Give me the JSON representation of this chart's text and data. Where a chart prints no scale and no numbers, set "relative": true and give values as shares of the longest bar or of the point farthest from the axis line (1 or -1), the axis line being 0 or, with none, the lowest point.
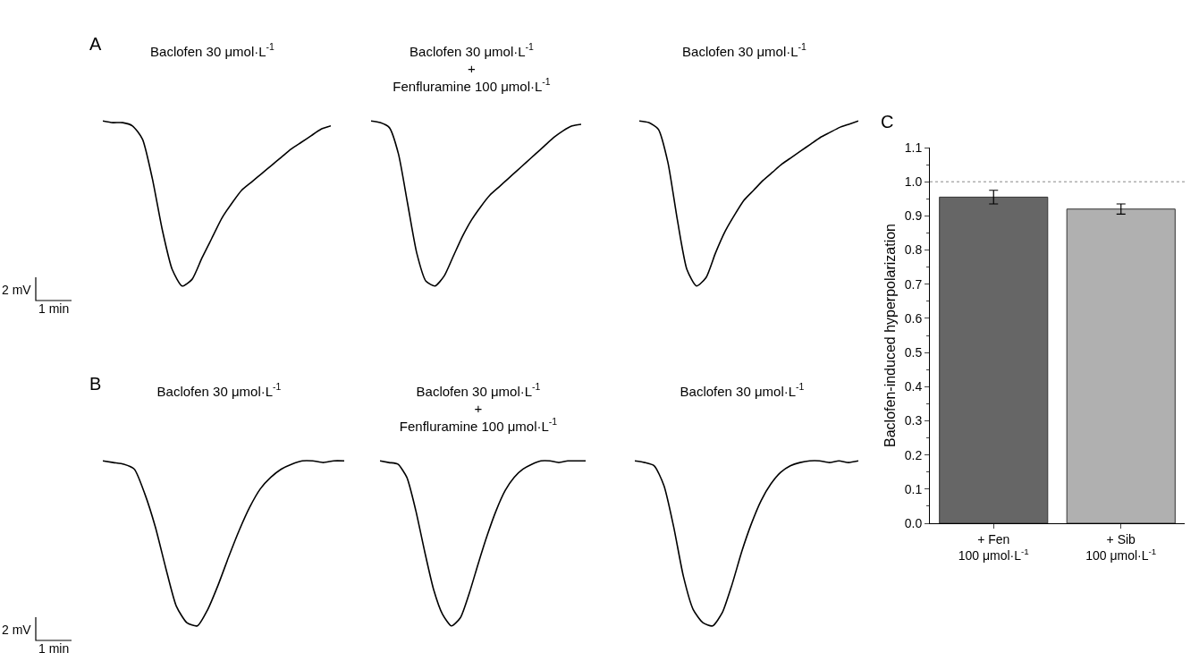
{
  "chart_data": [
    {
      "type": "line",
      "title": "Baclofen 30 μmol·L$^{-1}$",
      "annotations": [
        "A",
        "2 mV",
        "1 min"
      ],
      "relative": true,
      "color": "#000000",
      "categories": [
        null,
        null,
        null,
        null,
        null,
        null,
        null,
        null,
        null,
        null,
        null,
        null,
        null,
        null,
        null,
        null,
        null,
        null,
        null,
        null,
        null,
        null,
        null,
        null
      ],
      "values": [
        1.0,
        0.99,
        0.99,
        0.97,
        0.89,
        0.65,
        0.34,
        0.1,
        0,
        0.04,
        0.17,
        0.29,
        0.41,
        0.5,
        0.58,
        0.63,
        0.68,
        0.73,
        0.78,
        0.83,
        0.87,
        0.91,
        0.95,
        0.97
      ]
    },
    {
      "type": "line",
      "title": "Baclofen 30 μmol·L$^{-1}$\n+\nFenfluramine 100 μmol·L$^{-1}$",
      "relative": true,
      "color": "#000000",
      "categories": [
        null,
        null,
        null,
        null,
        null,
        null,
        null,
        null,
        null,
        null,
        null,
        null,
        null,
        null,
        null,
        null,
        null,
        null,
        null,
        null,
        null,
        null,
        null,
        null
      ],
      "values": [
        1.0,
        0.99,
        0.96,
        0.8,
        0.5,
        0.2,
        0.03,
        0,
        0.06,
        0.18,
        0.3,
        0.4,
        0.48,
        0.55,
        0.6,
        0.65,
        0.7,
        0.75,
        0.8,
        0.85,
        0.9,
        0.94,
        0.97,
        0.98
      ]
    },
    {
      "type": "line",
      "title": "Baclofen 30 μmol·L$^{-1}$",
      "relative": true,
      "color": "#000000",
      "categories": [
        null,
        null,
        null,
        null,
        null,
        null,
        null,
        null,
        null,
        null,
        null,
        null,
        null,
        null,
        null,
        null,
        null,
        null,
        null,
        null,
        null,
        null,
        null,
        null
      ],
      "values": [
        1.0,
        0.99,
        0.95,
        0.75,
        0.4,
        0.1,
        0,
        0.05,
        0.2,
        0.33,
        0.43,
        0.52,
        0.58,
        0.64,
        0.69,
        0.74,
        0.78,
        0.82,
        0.86,
        0.9,
        0.93,
        0.96,
        0.98,
        1.0
      ]
    },
    {
      "type": "line",
      "title": "Baclofen 30 μmol·L$^{-1}$",
      "annotations": [
        "B",
        "2 mV",
        "1 min"
      ],
      "relative": true,
      "color": "#000000",
      "categories": [
        null,
        null,
        null,
        null,
        null,
        null,
        null,
        null,
        null,
        null,
        null,
        null,
        null,
        null,
        null,
        null,
        null,
        null,
        null,
        null,
        null,
        null,
        null,
        null
      ],
      "values": [
        1.0,
        0.99,
        0.98,
        0.95,
        0.8,
        0.6,
        0.35,
        0.12,
        0.02,
        0,
        0.1,
        0.25,
        0.42,
        0.58,
        0.72,
        0.83,
        0.9,
        0.95,
        0.98,
        1.0,
        1.0,
        0.99,
        1.0,
        1.0
      ]
    },
    {
      "type": "line",
      "title": "Baclofen 30 μmol·L$^{-1}$\n+\nFenfluramine 100 μmol·L$^{-1}$",
      "relative": true,
      "color": "#000000",
      "categories": [
        null,
        null,
        null,
        null,
        null,
        null,
        null,
        null,
        null,
        null,
        null,
        null,
        null,
        null,
        null,
        null,
        null,
        null,
        null,
        null,
        null,
        null,
        null,
        null
      ],
      "values": [
        1.0,
        0.99,
        0.98,
        0.9,
        0.7,
        0.45,
        0.22,
        0.07,
        0,
        0.05,
        0.2,
        0.38,
        0.55,
        0.7,
        0.82,
        0.9,
        0.95,
        0.98,
        1.0,
        1.0,
        0.99,
        1.0,
        1.0,
        1.0
      ]
    },
    {
      "type": "line",
      "title": "Baclofen 30 μmol·L$^{-1}$",
      "relative": true,
      "color": "#000000",
      "categories": [
        null,
        null,
        null,
        null,
        null,
        null,
        null,
        null,
        null,
        null,
        null,
        null,
        null,
        null,
        null,
        null,
        null,
        null,
        null,
        null,
        null,
        null,
        null,
        null
      ],
      "values": [
        1.0,
        0.99,
        0.97,
        0.85,
        0.6,
        0.3,
        0.1,
        0.02,
        0,
        0.08,
        0.25,
        0.45,
        0.62,
        0.76,
        0.86,
        0.93,
        0.97,
        0.99,
        1.0,
        1.0,
        0.99,
        1.0,
        0.99,
        1.0
      ]
    },
    {
      "type": "bar",
      "annotations": [
        "C"
      ],
      "ylabel": "Baclofen-induced hyperpolarization",
      "categories": [
        "+ Fen\n100 μmol·L$^{-1}$",
        "+ Sib\n100 μmol·L$^{-1}$"
      ],
      "values": [
        0.955,
        0.92
      ],
      "errors": [
        0.02,
        0.015
      ],
      "colors": [
        "#666666",
        "#b0b0b0"
      ],
      "ylim": [
        0,
        1.1
      ],
      "yticks": [
        {
          "value": 0,
          "label": "0.0"
        },
        0.1,
        0.2,
        0.3,
        0.4,
        0.5,
        0.6,
        0.7,
        0.8,
        0.9,
        {
          "value": 1,
          "label": "1.0"
        },
        1.1
      ],
      "ref_lines": [
        {
          "axis": "y",
          "value": 1.0,
          "line_style": "dotted",
          "color": "#888888"
        }
      ]
    }
  ]
}
